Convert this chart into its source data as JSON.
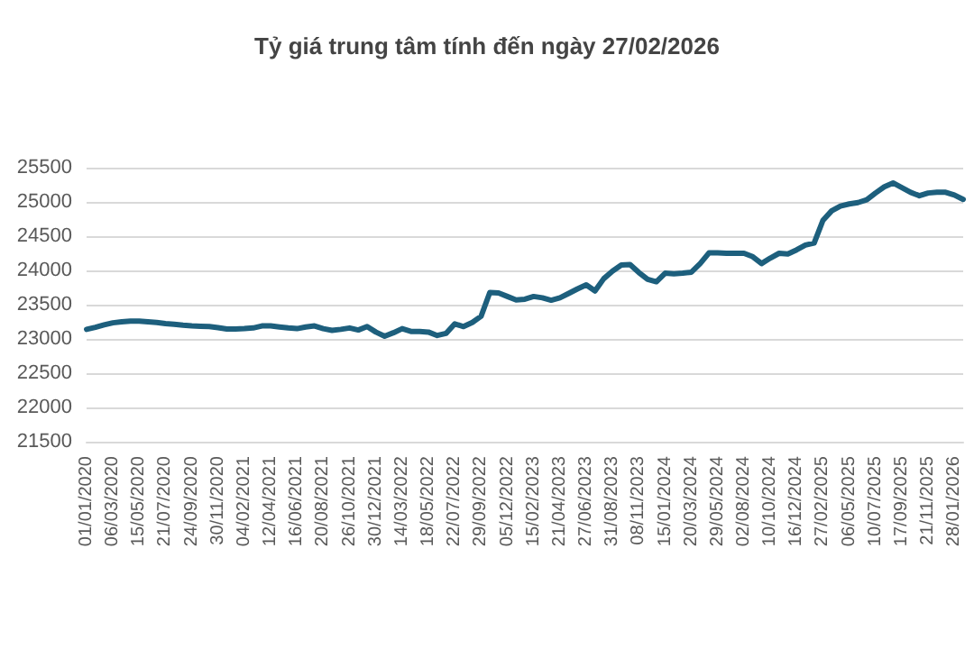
{
  "chart_data": {
    "type": "line",
    "title": "Tỷ giá trung tâm tính đến ngày 27/02/2026",
    "categories": [
      "01/01/2020",
      null,
      null,
      "06/03/2020",
      null,
      null,
      "15/05/2020",
      null,
      null,
      "21/07/2020",
      null,
      null,
      "24/09/2020",
      null,
      null,
      "30/11/2020",
      null,
      null,
      "04/02/2021",
      null,
      null,
      "12/04/2021",
      null,
      null,
      "16/06/2021",
      null,
      null,
      "20/08/2021",
      null,
      null,
      "26/10/2021",
      null,
      null,
      "30/12/2021",
      null,
      null,
      "14/03/2022",
      null,
      null,
      "18/05/2022",
      null,
      null,
      "22/07/2022",
      null,
      null,
      "29/09/2022",
      null,
      null,
      "05/12/2022",
      null,
      null,
      "15/02/2023",
      null,
      null,
      "21/04/2023",
      null,
      null,
      "27/06/2023",
      null,
      null,
      "31/08/2023",
      null,
      null,
      "08/11/2023",
      null,
      null,
      "15/01/2024",
      null,
      null,
      "20/03/2024",
      null,
      null,
      "29/05/2024",
      null,
      null,
      "02/08/2024",
      null,
      null,
      "10/10/2024",
      null,
      null,
      "16/12/2024",
      null,
      null,
      "27/02/2025",
      null,
      null,
      "06/05/2025",
      null,
      null,
      "10/07/2025",
      null,
      null,
      "17/09/2025",
      null,
      null,
      "21/11/2025",
      null,
      null,
      "28/01/2026",
      null
    ],
    "series": [
      {
        "color": "#1d5f7d",
        "values": [
          23140,
          23170,
          23205,
          23235,
          23250,
          23260,
          23260,
          23250,
          23240,
          23225,
          23215,
          23200,
          23190,
          23185,
          23180,
          23165,
          23145,
          23145,
          23150,
          23160,
          23190,
          23190,
          23175,
          23160,
          23150,
          23175,
          23190,
          23150,
          23125,
          23140,
          23160,
          23130,
          23180,
          23100,
          23040,
          23090,
          23150,
          23110,
          23110,
          23100,
          23050,
          23080,
          23220,
          23180,
          23240,
          23330,
          23677,
          23670,
          23620,
          23570,
          23580,
          23620,
          23600,
          23565,
          23600,
          23665,
          23730,
          23790,
          23700,
          23880,
          23990,
          24078,
          24085,
          23970,
          23870,
          23835,
          23960,
          23950,
          23960,
          23975,
          24100,
          24255,
          24255,
          24250,
          24250,
          24250,
          24200,
          24100,
          24180,
          24250,
          24240,
          24300,
          24370,
          24400,
          24730,
          24870,
          24940,
          24970,
          24990,
          25030,
          25130,
          25220,
          25277,
          25210,
          25140,
          25090,
          25130,
          25140,
          25140,
          25100,
          25037
        ]
      }
    ],
    "ylim": [
      21500,
      25500
    ],
    "yticks": [
      21500,
      22000,
      22500,
      23000,
      23500,
      24000,
      24500,
      25000,
      25500
    ],
    "grid": "y",
    "marker": "none",
    "line_style": "solid"
  }
}
